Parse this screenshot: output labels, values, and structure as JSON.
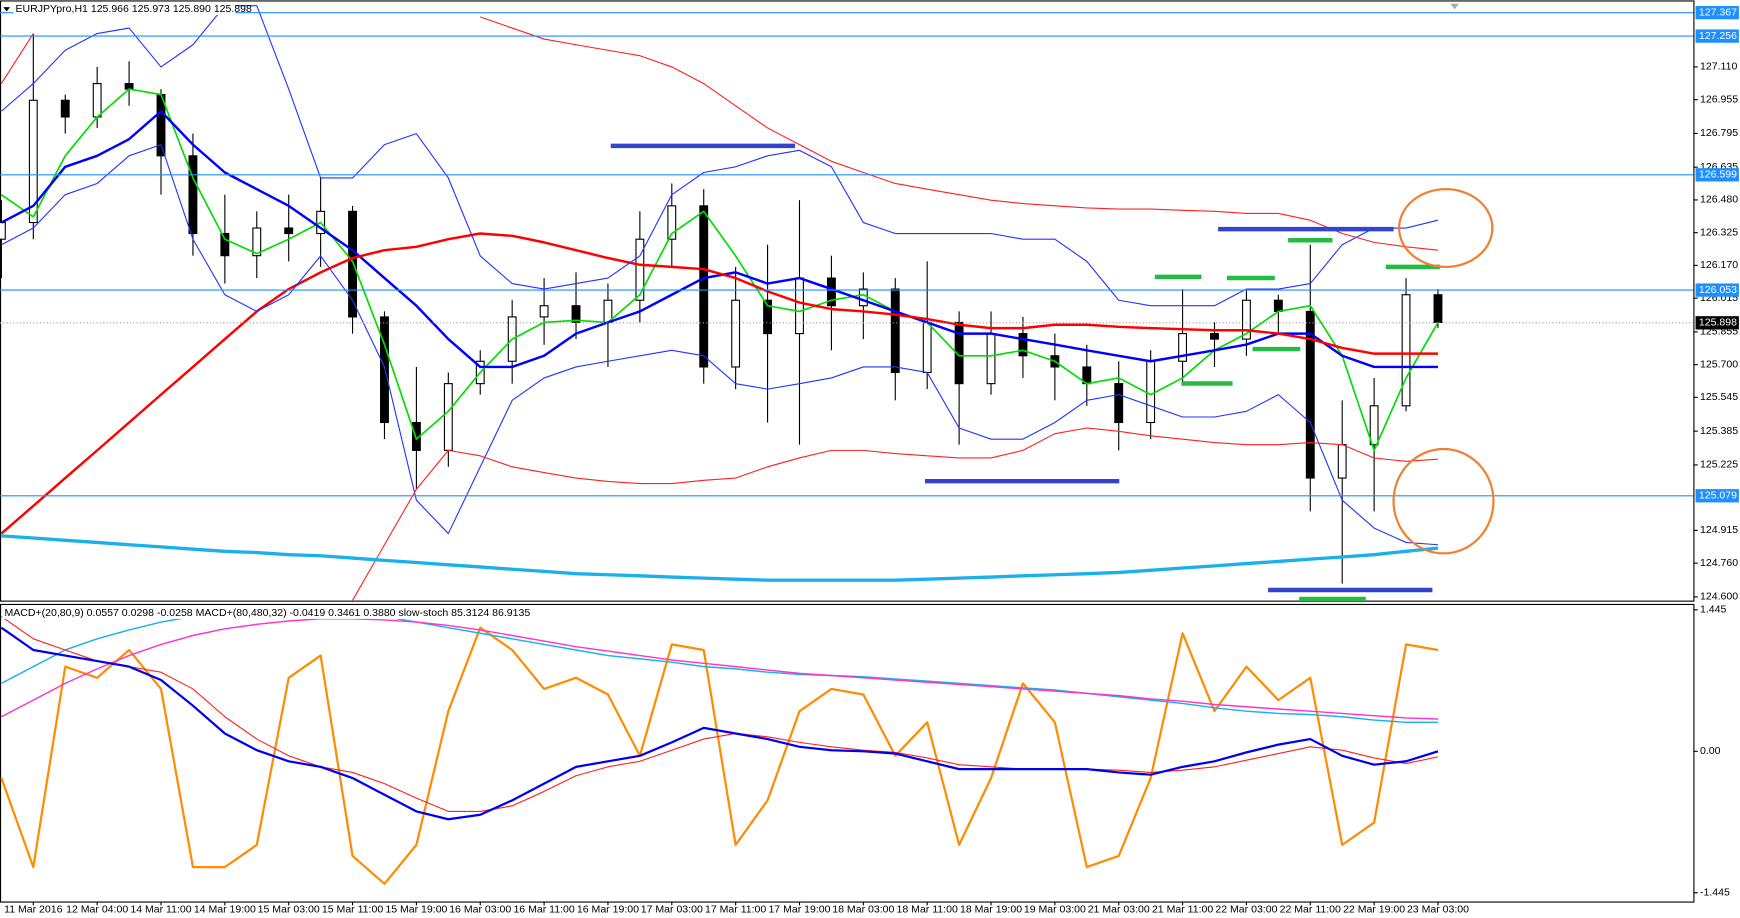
{
  "chart_data": [
    {
      "type": "candlestick",
      "title": "EURJPYpro,H1  125.966 125.973 125.890 125.898",
      "categories": [
        null,
        "11 Mar 2016",
        null,
        "12 Mar 04:00",
        null,
        "14 Mar 11:00",
        null,
        "14 Mar 19:00",
        null,
        "15 Mar 03:00",
        null,
        "15 Mar 11:00",
        null,
        "15 Mar 19:00",
        null,
        "16 Mar 03:00",
        null,
        "16 Mar 11:00",
        null,
        "16 Mar 19:00",
        null,
        "17 Mar 03:00",
        null,
        "17 Mar 11:00",
        null,
        "17 Mar 19:00",
        null,
        "18 Mar 03:00",
        null,
        "18 Mar 11:00",
        null,
        "18 Mar 19:00",
        null,
        "19 Mar 03:00",
        null,
        "21 Mar 03:00",
        null,
        "21 Mar 11:00",
        null,
        "22 Mar 03:00",
        null,
        "22 Mar 11:00",
        null,
        "22 Mar 19:00",
        null,
        "23 Mar 03:00"
      ],
      "open": [
        126.294,
        126.373,
        126.952,
        126.873,
        127.031,
        126.979,
        126.689,
        126.321,
        126.216,
        126.347,
        126.321,
        126.426,
        125.926,
        125.426,
        125.294,
        125.61,
        125.716,
        125.926,
        125.979,
        125.9,
        126.005,
        126.294,
        126.452,
        125.689,
        126.005,
        125.847,
        126.11,
        125.979,
        126.058,
        125.663,
        125.9,
        125.61,
        125.847,
        125.742,
        125.689,
        125.61,
        125.426,
        125.716,
        125.847,
        125.821,
        126.005,
        125.952,
        125.163,
        125.321,
        125.505,
        126.031
      ],
      "high": [
        126.479,
        127.268,
        126.979,
        127.11,
        127.137,
        127.005,
        126.794,
        126.505,
        126.426,
        126.505,
        126.584,
        126.452,
        125.952,
        125.689,
        125.663,
        125.768,
        126.005,
        126.11,
        126.137,
        126.084,
        126.426,
        126.558,
        126.531,
        126.163,
        126.268,
        126.479,
        126.216,
        126.137,
        126.11,
        126.189,
        125.952,
        125.952,
        125.926,
        125.847,
        125.794,
        125.716,
        125.768,
        126.058,
        125.9,
        126.058,
        126.031,
        126.268,
        125.531,
        125.637,
        126.11,
        126.058
      ],
      "low": [
        126.11,
        126.294,
        126.794,
        126.821,
        126.926,
        126.505,
        126.216,
        126.084,
        126.11,
        126.189,
        126.163,
        125.847,
        125.347,
        125.11,
        125.216,
        125.558,
        125.61,
        125.794,
        125.821,
        125.689,
        125.9,
        126.163,
        125.61,
        125.584,
        125.426,
        125.321,
        125.768,
        125.821,
        125.531,
        125.584,
        125.321,
        125.558,
        125.637,
        125.531,
        125.505,
        125.294,
        125.347,
        125.61,
        125.689,
        125.742,
        125.847,
        125.005,
        124.663,
        125.005,
        125.479,
        125.873
      ],
      "close": [
        126.373,
        126.952,
        126.873,
        127.031,
        127.005,
        126.689,
        126.321,
        126.216,
        126.347,
        126.321,
        126.426,
        125.926,
        125.426,
        125.294,
        125.61,
        125.716,
        125.926,
        125.979,
        125.9,
        126.005,
        126.294,
        126.452,
        125.689,
        126.005,
        125.847,
        126.11,
        125.979,
        126.058,
        125.663,
        125.9,
        125.61,
        125.847,
        125.742,
        125.689,
        125.61,
        125.426,
        125.716,
        125.847,
        125.821,
        126.005,
        125.952,
        125.163,
        125.321,
        125.505,
        126.031,
        125.9
      ],
      "up_color": "#ffffff",
      "down_color": "#000000",
      "series": [
        {
          "color": "#00dd00",
          "values": [
            126.505,
            126.4,
            126.689,
            126.873,
            127.005,
            126.979,
            126.584,
            126.294,
            126.226,
            126.294,
            126.373,
            126.189,
            125.795,
            125.347,
            125.479,
            125.663,
            125.821,
            125.9,
            125.91,
            125.9,
            126.031,
            126.321,
            126.426,
            126.215,
            125.979,
            125.952,
            126.005,
            126.031,
            125.952,
            125.9,
            125.742,
            125.742,
            125.768,
            125.716,
            125.61,
            125.637,
            125.558,
            125.637,
            125.768,
            125.847,
            125.952,
            125.979,
            125.742,
            125.294,
            125.637,
            125.9
          ]
        },
        {
          "color": "#0000ff",
          "values": [
            126.373,
            126.452,
            126.637,
            126.689,
            126.768,
            126.9,
            126.742,
            126.61,
            126.531,
            126.452,
            126.347,
            126.242,
            126.11,
            125.979,
            125.821,
            125.689,
            125.689,
            125.742,
            125.847,
            125.9,
            125.952,
            126.031,
            126.11,
            126.137,
            126.084,
            126.11,
            126.058,
            126.005,
            125.952,
            125.9,
            125.847,
            125.847,
            125.821,
            125.795,
            125.768,
            125.742,
            125.716,
            125.742,
            125.768,
            125.795,
            125.847,
            125.847,
            125.742,
            125.689,
            125.689,
            125.689
          ]
        },
        {
          "color": "#ff0000",
          "values": [
            124.9,
            125.031,
            125.163,
            125.294,
            125.426,
            125.558,
            125.689,
            125.821,
            125.952,
            126.058,
            126.137,
            126.205,
            126.242,
            126.258,
            126.294,
            126.321,
            126.31,
            126.279,
            126.242,
            126.205,
            126.173,
            126.163,
            126.152,
            126.11,
            126.047,
            125.994,
            125.963,
            125.952,
            125.937,
            125.916,
            125.889,
            125.873,
            125.873,
            125.889,
            125.889,
            125.879,
            125.873,
            125.868,
            125.863,
            125.863,
            125.847,
            125.821,
            125.779,
            125.752,
            125.752,
            125.752
          ]
        },
        {
          "color": "#2233ff",
          "values": [
            126.9,
            127.031,
            127.189,
            127.268,
            127.294,
            127.11,
            127.215,
            127.4,
            127.4,
            127.005,
            126.584,
            126.584,
            126.742,
            126.794,
            126.584,
            126.215,
            126.084,
            126.058,
            126.084,
            126.11,
            126.215,
            126.505,
            126.61,
            126.637,
            126.689,
            126.715,
            126.637,
            126.373,
            126.321,
            126.321,
            126.321,
            126.321,
            126.294,
            126.294,
            126.189,
            126.005,
            125.979,
            125.979,
            125.979,
            126.058,
            126.058,
            126.084,
            126.268,
            126.347,
            126.347,
            126.384
          ]
        },
        {
          "color": "#2233ff",
          "values": [
            126.268,
            126.347,
            126.505,
            126.558,
            126.689,
            126.742,
            126.294,
            126.031,
            125.952,
            126.031,
            126.215,
            126.005,
            125.689,
            125.058,
            124.9,
            125.216,
            125.531,
            125.637,
            125.689,
            125.716,
            125.742,
            125.768,
            125.742,
            125.61,
            125.584,
            125.61,
            125.637,
            125.689,
            125.689,
            125.663,
            125.4,
            125.347,
            125.347,
            125.426,
            125.531,
            125.558,
            125.505,
            125.452,
            125.452,
            125.479,
            125.558,
            125.426,
            125.058,
            124.926,
            124.858,
            124.847
          ]
        },
        {
          "color": "#ff2020",
          "values": [
            127.031,
            127.268,
            null,
            null,
            null,
            null,
            null,
            null,
            null,
            null,
            null,
            null,
            null,
            null,
            null,
            127.347,
            127.294,
            127.242,
            127.215,
            127.189,
            127.163,
            127.11,
            127.031,
            126.926,
            126.821,
            126.742,
            126.663,
            126.61,
            126.558,
            126.531,
            126.505,
            126.479,
            126.463,
            126.452,
            126.442,
            126.437,
            126.437,
            126.431,
            126.426,
            126.416,
            126.416,
            126.384,
            126.321,
            126.279,
            126.258,
            126.242
          ]
        },
        {
          "color": "#ff2020",
          "values": [
            null,
            null,
            null,
            null,
            null,
            null,
            null,
            null,
            null,
            null,
            null,
            124.584,
            124.847,
            125.11,
            125.294,
            125.268,
            125.216,
            125.189,
            125.163,
            125.147,
            125.137,
            125.137,
            125.152,
            125.163,
            125.216,
            125.258,
            125.294,
            125.294,
            125.279,
            125.268,
            125.258,
            125.258,
            125.294,
            125.373,
            125.4,
            125.384,
            125.363,
            125.347,
            125.331,
            125.321,
            125.321,
            125.331,
            125.321,
            125.258,
            125.242,
            125.252
          ]
        },
        {
          "color": "#1ab0ea",
          "values": [
            124.889,
            124.879,
            124.868,
            124.858,
            124.847,
            124.837,
            124.826,
            124.816,
            124.81,
            124.8,
            124.795,
            124.784,
            124.773,
            124.763,
            124.752,
            124.742,
            124.731,
            124.721,
            124.71,
            124.705,
            124.7,
            124.694,
            124.689,
            124.684,
            124.679,
            124.679,
            124.679,
            124.679,
            124.679,
            124.684,
            124.689,
            124.694,
            124.7,
            124.705,
            124.71,
            124.716,
            124.726,
            124.737,
            124.747,
            124.758,
            124.768,
            124.779,
            124.789,
            124.8,
            124.816,
            124.831
          ]
        }
      ],
      "levels": [
        127.367,
        127.256,
        126.599,
        126.053,
        125.079
      ],
      "level_color": "#1e8fff",
      "current_price": 125.898,
      "ylim": [
        124.58,
        127.425
      ],
      "yticks": [
        {
          "value": 127.11,
          "label": "127.110"
        },
        126.955,
        126.795,
        126.635,
        {
          "value": 126.48,
          "label": "126.480"
        },
        126.325,
        {
          "value": 126.17,
          "label": "126.170"
        },
        126.015,
        125.855,
        {
          "value": 125.7,
          "label": "125.700"
        },
        125.545,
        125.385,
        125.225,
        124.915,
        {
          "value": 124.76,
          "label": "124.760"
        },
        {
          "value": 124.6,
          "label": "124.600"
        }
      ]
    },
    {
      "type": "line",
      "title": "MACD+(20,80,9) 0.0557 0.0298 -0.0258  MACD+(80,480,32) -0.0419 0.3461 0.3880  slow-stoch 85.3124 86.9135",
      "series": [
        {
          "color": "#ff8c00",
          "values": [
            -0.273,
            -1.183,
            0.865,
            0.751,
            1.035,
            0.637,
            -1.183,
            -1.183,
            -0.956,
            0.751,
            0.978,
            -1.069,
            -1.354,
            -0.956,
            0.41,
            1.263,
            1.035,
            0.637,
            0.751,
            0.58,
            -0.046,
            1.092,
            1.035,
            -0.956,
            -0.501,
            0.41,
            0.637,
            0.58,
            -0.046,
            0.296,
            -0.956,
            -0.273,
            0.694,
            0.296,
            -1.183,
            -1.069,
            -0.273,
            1.206,
            0.41,
            0.865,
            0.523,
            0.751,
            -0.956,
            -0.728,
            1.092,
            1.035
          ]
        },
        {
          "color": "#1ab0ea",
          "values": [
            0.694,
            0.865,
            1.035,
            1.149,
            1.24,
            1.32,
            1.377,
            1.411,
            1.433,
            1.433,
            1.433,
            1.411,
            1.377,
            1.32,
            1.263,
            1.206,
            1.149,
            1.092,
            1.035,
            0.978,
            0.944,
            0.91,
            0.865,
            0.842,
            0.808,
            0.785,
            0.774,
            0.762,
            0.739,
            0.717,
            0.694,
            0.671,
            0.648,
            0.626,
            0.592,
            0.557,
            0.523,
            0.489,
            0.444,
            0.41,
            0.387,
            0.375,
            0.353,
            0.319,
            0.296,
            0.296
          ]
        },
        {
          "color": "#ff33cc",
          "values": [
            0.353,
            0.523,
            0.694,
            0.842,
            0.978,
            1.092,
            1.183,
            1.251,
            1.297,
            1.331,
            1.354,
            1.354,
            1.342,
            1.32,
            1.286,
            1.24,
            1.183,
            1.126,
            1.069,
            1.024,
            0.978,
            0.933,
            0.899,
            0.865,
            0.83,
            0.796,
            0.774,
            0.751,
            0.728,
            0.705,
            0.683,
            0.66,
            0.637,
            0.614,
            0.592,
            0.569,
            0.535,
            0.512,
            0.478,
            0.455,
            0.432,
            0.41,
            0.387,
            0.364,
            0.341,
            0.33
          ]
        },
        {
          "color": "#ff2020",
          "values": [
            1.377,
            1.149,
            1.035,
            0.922,
            0.865,
            0.808,
            0.637,
            0.353,
            0.125,
            -0.046,
            -0.159,
            -0.216,
            -0.33,
            -0.478,
            -0.614,
            -0.614,
            -0.557,
            -0.41,
            -0.25,
            -0.159,
            -0.102,
            0.011,
            0.125,
            0.182,
            0.148,
            0.091,
            0.046,
            0.011,
            -0.011,
            -0.068,
            -0.137,
            -0.159,
            -0.182,
            -0.182,
            -0.182,
            -0.193,
            -0.216,
            -0.193,
            -0.159,
            -0.091,
            -0.023,
            0.046,
            0.011,
            -0.068,
            -0.125,
            -0.057
          ]
        },
        {
          "color": "#0000ee",
          "values": [
            1.263,
            1.035,
            0.978,
            0.922,
            0.865,
            0.728,
            0.466,
            0.182,
            0.011,
            -0.102,
            -0.159,
            -0.273,
            -0.444,
            -0.614,
            -0.694,
            -0.648,
            -0.501,
            -0.33,
            -0.159,
            -0.102,
            -0.046,
            0.091,
            0.239,
            0.182,
            0.125,
            0.046,
            0.011,
            0,
            -0.023,
            -0.102,
            -0.182,
            -0.182,
            -0.182,
            -0.182,
            -0.182,
            -0.216,
            -0.239,
            -0.159,
            -0.102,
            -0.011,
            0.068,
            0.125,
            -0.046,
            -0.137,
            -0.102,
            0
          ]
        }
      ],
      "ylim": [
        -1.54,
        1.5
      ],
      "yticks": [
        1.445,
        {
          "value": 0,
          "label": "0.00"
        },
        -1.445
      ]
    }
  ]
}
